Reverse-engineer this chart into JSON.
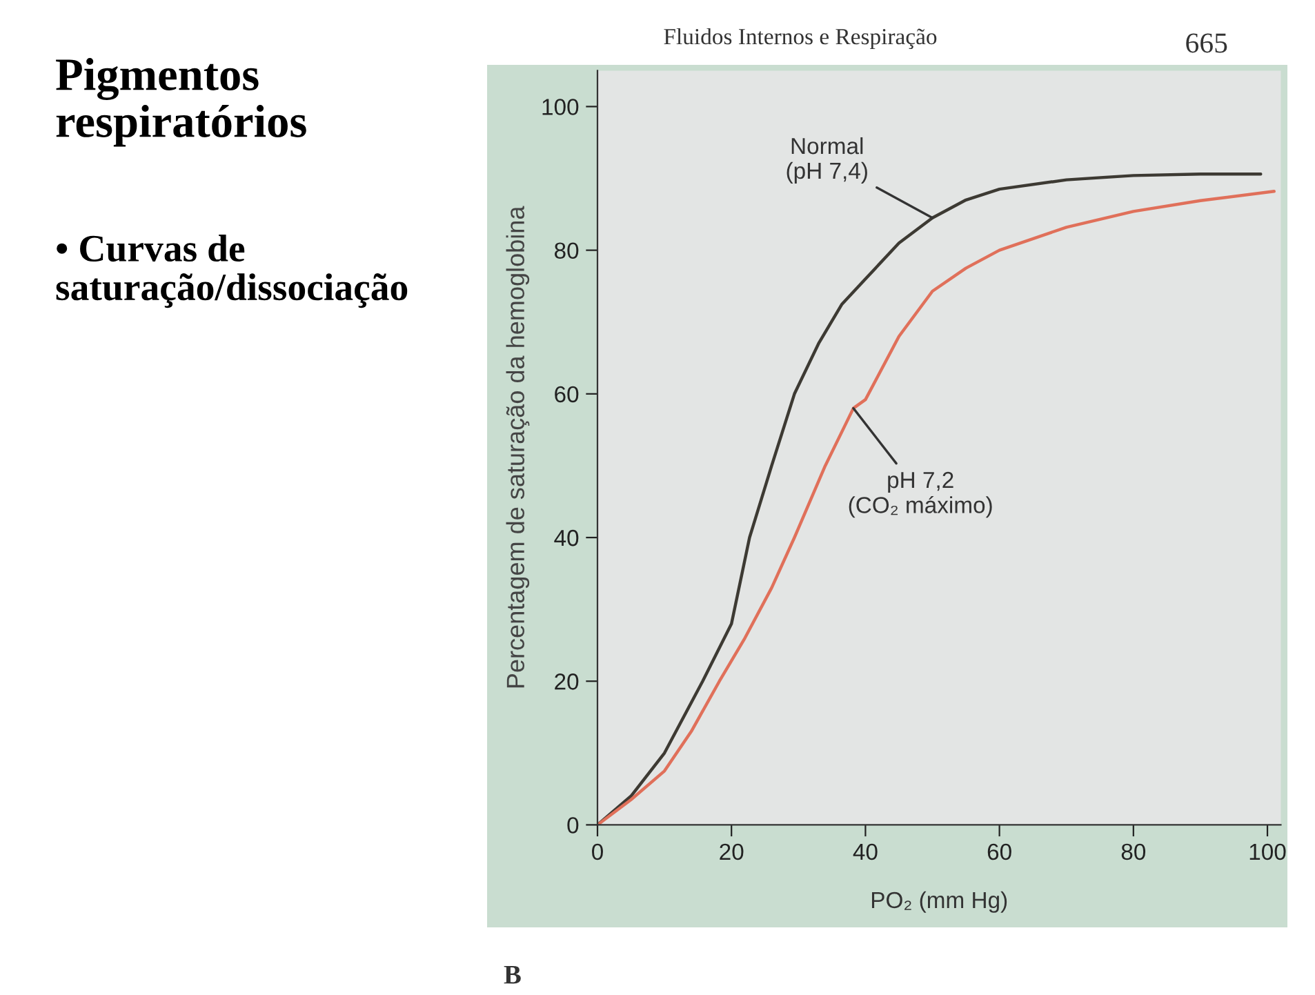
{
  "chart_data": {
    "type": "line",
    "title": "Pigmentos respiratórios",
    "subtitle": "• Curvas de saturação/dissociação",
    "xlabel": "PO₂ (mm Hg)",
    "ylabel": "Percentagem de saturação da hemoglobina",
    "xlim": [
      0,
      102
    ],
    "ylim": [
      0,
      105
    ],
    "xticks": [
      0,
      20,
      40,
      60,
      80,
      100
    ],
    "yticks": [
      0,
      20,
      40,
      60,
      80,
      100
    ],
    "grid": false,
    "legend": false,
    "marker": "none",
    "line_style": "solid",
    "series": [
      {
        "color": "#3d3a33",
        "x": [
          0,
          5,
          10,
          15.7,
          20,
          22.7,
          26,
          29.4,
          33,
          36.5,
          40,
          45,
          50,
          55,
          60,
          70,
          80,
          90,
          99
        ],
        "values": [
          0,
          4,
          10,
          20,
          28,
          40,
          50,
          60,
          67,
          72.5,
          76,
          81,
          84.5,
          87,
          88.5,
          89.8,
          90.4,
          90.6,
          90.6
        ]
      },
      {
        "color": "#e0705a",
        "x": [
          0,
          5,
          10,
          14,
          18.2,
          22,
          26,
          29.4,
          34,
          38.2,
          40,
          45,
          50,
          55,
          60,
          70,
          80,
          90,
          101
        ],
        "values": [
          0,
          3.5,
          7.5,
          13,
          20,
          26,
          33,
          40,
          50,
          58,
          59.2,
          68,
          74.3,
          77.5,
          80,
          83.2,
          85.4,
          86.9,
          88.2
        ]
      }
    ],
    "annotations": [
      {
        "text": "Normal\n(pH 7,4)",
        "x": 50,
        "y": 84.5
      },
      {
        "text": "pH 7,2\n(CO₂ máximo)",
        "x": 38.2,
        "y": 58
      },
      "Fluidos Internos e Respiração",
      "665",
      "B"
    ]
  }
}
